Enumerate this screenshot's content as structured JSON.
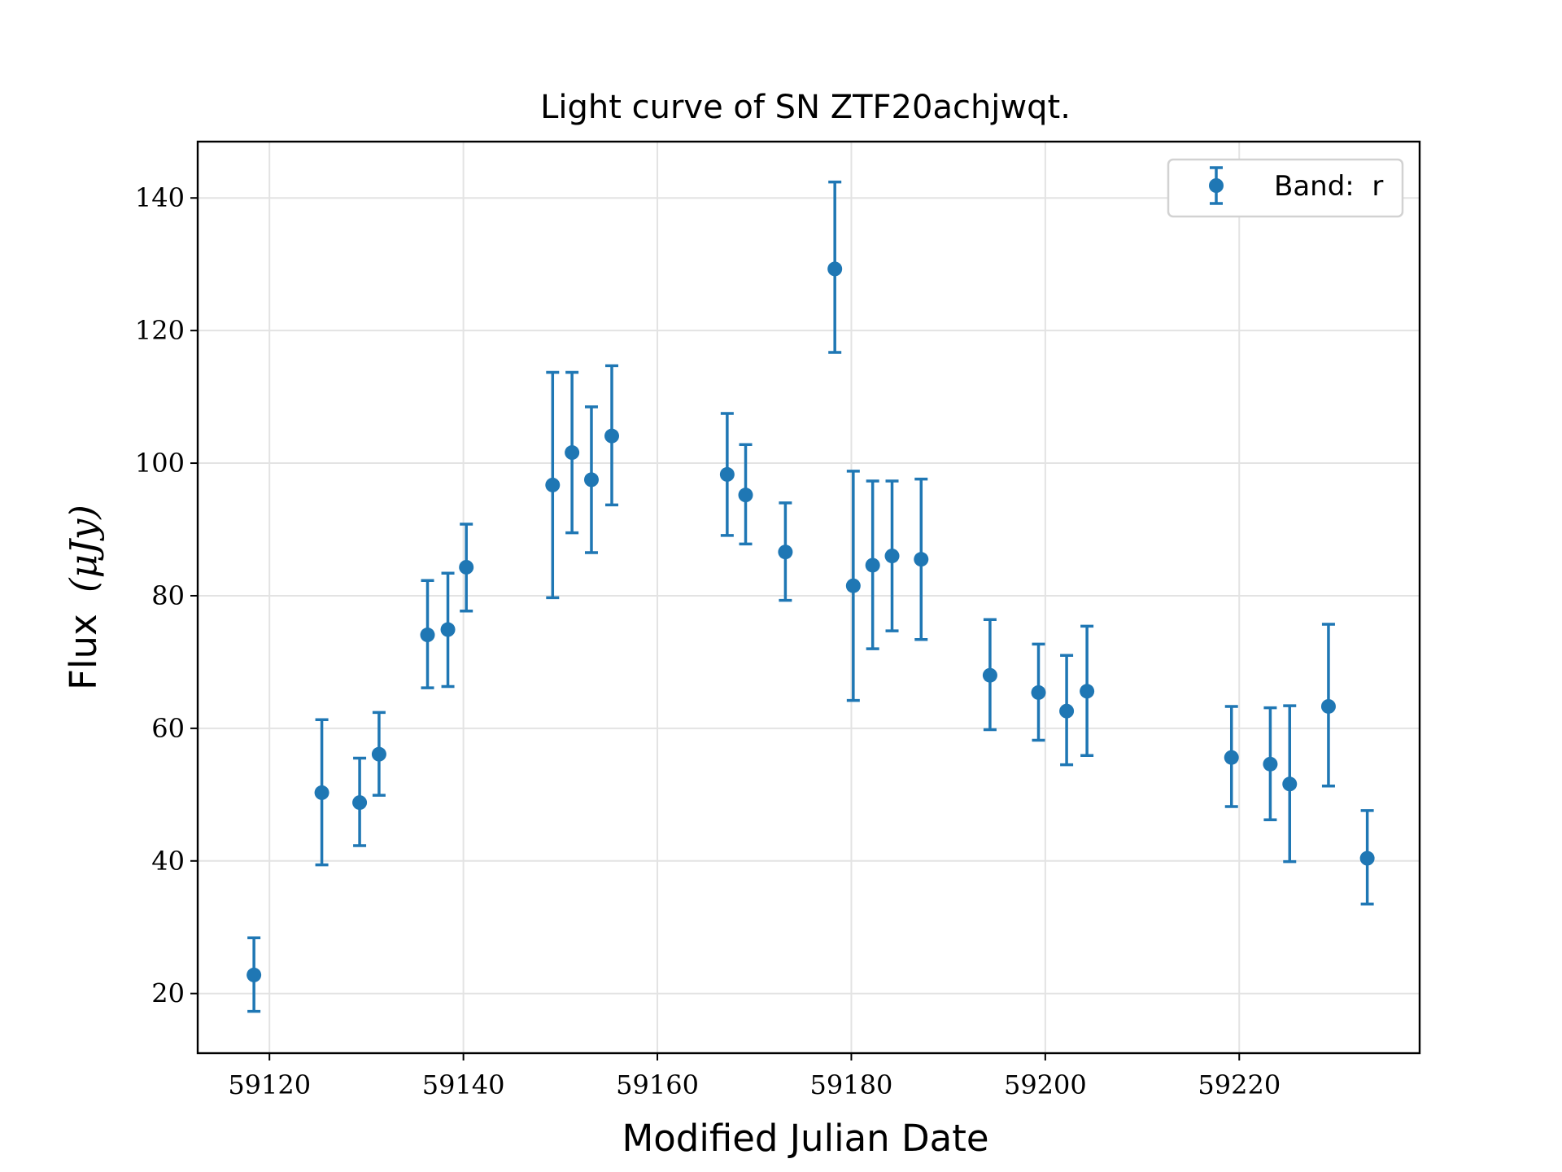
{
  "chart_data": {
    "type": "scatter",
    "title": "Light curve of SN ZTF20achjwqt.",
    "xlabel": "Modified Julian Date",
    "ylabel_main": "Flux",
    "ylabel_unit": "(μJy)",
    "xlim": [
      59112.6,
      59238.6
    ],
    "ylim": [
      11,
      148.5
    ],
    "xticks": [
      59120,
      59140,
      59160,
      59180,
      59200,
      59220
    ],
    "yticks": [
      20,
      40,
      60,
      80,
      100,
      120,
      140
    ],
    "grid": true,
    "legend_position": "top-right",
    "series": [
      {
        "name": "Band:  r",
        "color": "#1f77b4",
        "marker": "circle-with-errorbars",
        "points": [
          {
            "x": 59118.4,
            "y": 22.8,
            "err_low": 17.3,
            "err_high": 28.4
          },
          {
            "x": 59125.4,
            "y": 50.3,
            "err_low": 39.4,
            "err_high": 61.3
          },
          {
            "x": 59129.3,
            "y": 48.8,
            "err_low": 42.3,
            "err_high": 55.5
          },
          {
            "x": 59131.3,
            "y": 56.1,
            "err_low": 49.9,
            "err_high": 62.4
          },
          {
            "x": 59136.3,
            "y": 74.1,
            "err_low": 66.1,
            "err_high": 82.3
          },
          {
            "x": 59138.4,
            "y": 74.9,
            "err_low": 66.3,
            "err_high": 83.4
          },
          {
            "x": 59140.3,
            "y": 84.3,
            "err_low": 77.7,
            "err_high": 90.8
          },
          {
            "x": 59149.2,
            "y": 96.7,
            "err_low": 79.7,
            "err_high": 113.7
          },
          {
            "x": 59151.2,
            "y": 101.6,
            "err_low": 89.5,
            "err_high": 113.7
          },
          {
            "x": 59153.2,
            "y": 97.5,
            "err_low": 86.5,
            "err_high": 108.5
          },
          {
            "x": 59155.3,
            "y": 104.1,
            "err_low": 93.7,
            "err_high": 114.7
          },
          {
            "x": 59167.2,
            "y": 98.3,
            "err_low": 89.1,
            "err_high": 107.5
          },
          {
            "x": 59169.1,
            "y": 95.2,
            "err_low": 87.8,
            "err_high": 102.8
          },
          {
            "x": 59173.2,
            "y": 86.6,
            "err_low": 79.3,
            "err_high": 94.0
          },
          {
            "x": 59178.3,
            "y": 129.3,
            "err_low": 116.7,
            "err_high": 142.4
          },
          {
            "x": 59180.2,
            "y": 81.5,
            "err_low": 64.2,
            "err_high": 98.8
          },
          {
            "x": 59182.2,
            "y": 84.6,
            "err_low": 72.0,
            "err_high": 97.3
          },
          {
            "x": 59184.2,
            "y": 86.0,
            "err_low": 74.7,
            "err_high": 97.3
          },
          {
            "x": 59187.2,
            "y": 85.5,
            "err_low": 73.4,
            "err_high": 97.6
          },
          {
            "x": 59194.3,
            "y": 68.0,
            "err_low": 59.8,
            "err_high": 76.4
          },
          {
            "x": 59199.3,
            "y": 65.4,
            "err_low": 58.2,
            "err_high": 72.7
          },
          {
            "x": 59202.2,
            "y": 62.6,
            "err_low": 54.5,
            "err_high": 71.0
          },
          {
            "x": 59204.3,
            "y": 65.6,
            "err_low": 55.9,
            "err_high": 75.4
          },
          {
            "x": 59219.2,
            "y": 55.6,
            "err_low": 48.2,
            "err_high": 63.3
          },
          {
            "x": 59223.2,
            "y": 54.6,
            "err_low": 46.2,
            "err_high": 63.1
          },
          {
            "x": 59225.2,
            "y": 51.6,
            "err_low": 39.9,
            "err_high": 63.4
          },
          {
            "x": 59229.2,
            "y": 63.3,
            "err_low": 51.3,
            "err_high": 75.7
          },
          {
            "x": 59233.2,
            "y": 40.4,
            "err_low": 33.5,
            "err_high": 47.6
          }
        ]
      }
    ]
  }
}
